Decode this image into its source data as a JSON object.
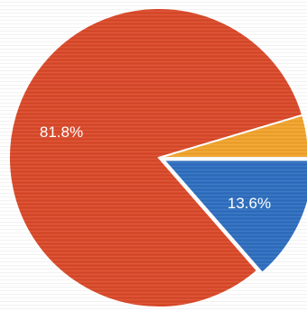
{
  "chart_data": {
    "type": "pie",
    "title": "",
    "slices": [
      {
        "label": "81.8%",
        "value": 81.8,
        "color": "#d94a2a"
      },
      {
        "label": "13.6%",
        "value": 13.6,
        "color": "#2f6fbf"
      },
      {
        "label": "",
        "value": 4.6,
        "color": "#f0a32c"
      }
    ],
    "legend": "none"
  }
}
